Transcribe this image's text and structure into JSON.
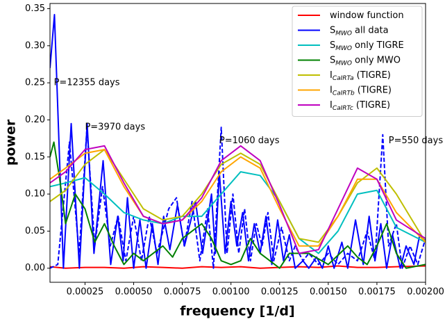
{
  "chart_data": {
    "type": "line",
    "xlabel": "frequency [1/d]",
    "ylabel": "power",
    "xlim": [
      7e-05,
      0.002
    ],
    "ylim": [
      -0.019,
      0.357
    ],
    "xticks": [
      {
        "value": 0.00025,
        "label": "0.00025"
      },
      {
        "value": 0.0005,
        "label": "0.00050"
      },
      {
        "value": 0.00075,
        "label": "0.00075"
      },
      {
        "value": 0.001,
        "label": "0.00100"
      },
      {
        "value": 0.00125,
        "label": "0.00125"
      },
      {
        "value": 0.0015,
        "label": "0.00150"
      },
      {
        "value": 0.00175,
        "label": "0.00175"
      },
      {
        "value": 0.002,
        "label": "0.00200"
      }
    ],
    "yticks": [
      {
        "value": 0,
        "label": "0.00"
      },
      {
        "value": 0.05,
        "label": "0.05"
      },
      {
        "value": 0.1,
        "label": "0.10"
      },
      {
        "value": 0.15,
        "label": "0.15"
      },
      {
        "value": 0.2,
        "label": "0.20"
      },
      {
        "value": 0.25,
        "label": "0.25"
      },
      {
        "value": 0.3,
        "label": "0.30"
      },
      {
        "value": 0.35,
        "label": "0.35"
      }
    ],
    "legend": "upper right",
    "series": [
      {
        "name": {
          "text": "window function"
        },
        "color": "#ff0000",
        "x": [
          7e-05,
          0.00015,
          0.00025,
          0.00035,
          0.00045,
          0.00055,
          0.00065,
          0.00075,
          0.00085,
          0.00095,
          0.00105,
          0.00115,
          0.00125,
          0.00135,
          0.00145,
          0.00155,
          0.00165,
          0.00175,
          0.00185,
          0.002
        ],
        "values": [
          0.002,
          0,
          0.001,
          0.001,
          0,
          0.002,
          0.001,
          0,
          0.002,
          0.001,
          0.002,
          0,
          0.001,
          0.002,
          0.001,
          0.003,
          0.001,
          0.001,
          0.002,
          0.003
        ]
      },
      {
        "name": {
          "base": "S",
          "sub": "MWO",
          "text": "all data"
        },
        "color": "#0000ff",
        "x": [
          7e-05,
          9.3e-05,
          0.000139,
          0.000179,
          0.000221,
          0.000261,
          0.000296,
          0.000343,
          0.000382,
          0.000418,
          0.000446,
          0.000468,
          0.0005,
          0.000532,
          0.000564,
          0.000596,
          0.000625,
          0.000654,
          0.000686,
          0.000725,
          0.000761,
          0.000818,
          0.000854,
          0.0009,
          0.00092,
          0.00094,
          0.00097,
          0.001,
          0.00103,
          0.00106,
          0.00109,
          0.00112,
          0.00115,
          0.00118,
          0.00121,
          0.00124,
          0.00127,
          0.0013,
          0.00133,
          0.00137,
          0.0014,
          0.00144,
          0.00147,
          0.0015,
          0.00153,
          0.00157,
          0.0016,
          0.00164,
          0.00168,
          0.00171,
          0.00174,
          0.00177,
          0.0018,
          0.00183,
          0.00187,
          0.0019,
          0.00194,
          0.00197,
          0.002
        ],
        "values": [
          0.27,
          0.342,
          0,
          0.195,
          0,
          0.195,
          0.02,
          0.145,
          0.005,
          0.07,
          0.01,
          0.095,
          0,
          0.065,
          0,
          0.06,
          0.005,
          0.07,
          0.025,
          0.085,
          0.03,
          0.09,
          0.02,
          0.1,
          0.02,
          0.13,
          0.02,
          0.09,
          0.03,
          0.075,
          0.01,
          0.06,
          0.02,
          0.07,
          0.005,
          0.065,
          0.01,
          0.045,
          0,
          0.01,
          0,
          0.015,
          0,
          0.03,
          0,
          0.035,
          0,
          0.065,
          0.005,
          0.07,
          0.01,
          0.06,
          0,
          0.045,
          0,
          0.03,
          0.005,
          0.045,
          0.035
        ]
      },
      {
        "color": "#0000ff",
        "dashed": true,
        "x": [
          7e-05,
          0.00011,
          0.00017,
          0.00022,
          0.00026,
          0.0003,
          0.00034,
          0.00038,
          0.00042,
          0.00046,
          0.0005,
          0.00054,
          0.00058,
          0.00062,
          0.00068,
          0.00072,
          0.00076,
          0.0008,
          0.00084,
          0.00088,
          0.00091,
          0.00095,
          0.00098,
          0.00101,
          0.00104,
          0.00107,
          0.0011,
          0.00113,
          0.00116,
          0.00119,
          0.00122,
          0.00126,
          0.0013,
          0.00133,
          0.00137,
          0.0014,
          0.00145,
          0.0015,
          0.00155,
          0.0016,
          0.00165,
          0.0017,
          0.00174,
          0.00178,
          0.00181,
          0.00185,
          0.00188,
          0.00192,
          0.00196,
          0.002
        ],
        "values": [
          0,
          0.005,
          0.17,
          0.02,
          0.19,
          0.03,
          0.11,
          0.03,
          0.07,
          0.01,
          0.07,
          0.01,
          0.07,
          0.02,
          0.08,
          0.095,
          0.03,
          0.09,
          0.01,
          0.08,
          0,
          0.19,
          0.02,
          0.1,
          0.02,
          0.08,
          0.01,
          0.06,
          0.03,
          0.075,
          0.01,
          0.055,
          0.01,
          0.03,
          0.01,
          0.02,
          0.005,
          0.02,
          0.005,
          0.02,
          0.01,
          0.05,
          0.01,
          0.18,
          0.03,
          0.06,
          0,
          0.03,
          0.005,
          0.04
        ]
      },
      {
        "name": {
          "base": "S",
          "sub": "MWO",
          "text": "only TIGRE"
        },
        "color": "#00bfbf",
        "x": [
          7e-05,
          0.00015,
          0.00025,
          0.00035,
          0.00045,
          0.00055,
          0.00065,
          0.00075,
          0.00085,
          0.00095,
          0.00105,
          0.00115,
          0.00125,
          0.00135,
          0.00145,
          0.00155,
          0.00165,
          0.00175,
          0.00185,
          0.002
        ],
        "values": [
          0.11,
          0.115,
          0.122,
          0.1,
          0.075,
          0.065,
          0.06,
          0.07,
          0.07,
          0.1,
          0.13,
          0.125,
          0.09,
          0.04,
          0.02,
          0.05,
          0.1,
          0.105,
          0.055,
          0.035
        ]
      },
      {
        "name": {
          "base": "S",
          "sub": "MWO",
          "text": "only MWO"
        },
        "color": "#008000",
        "x": [
          7e-05,
          9e-05,
          0.00012,
          0.00015,
          0.0002,
          0.00025,
          0.0003,
          0.00035,
          0.0004,
          0.00045,
          0.0005,
          0.00055,
          0.0006,
          0.00065,
          0.0007,
          0.00075,
          0.0008,
          0.00085,
          0.0009,
          0.00095,
          0.001,
          0.00105,
          0.0011,
          0.00115,
          0.0012,
          0.00125,
          0.0013,
          0.0014,
          0.0015,
          0.0016,
          0.00165,
          0.0017,
          0.00175,
          0.0018,
          0.00185,
          0.0019,
          0.002
        ],
        "values": [
          0.15,
          0.17,
          0.12,
          0.06,
          0.1,
          0.08,
          0.035,
          0.06,
          0.03,
          0.005,
          0.02,
          0.01,
          0.02,
          0.03,
          0.015,
          0.04,
          0.05,
          0.06,
          0.04,
          0.01,
          0.005,
          0.01,
          0.04,
          0.02,
          0.01,
          0,
          0.02,
          0.02,
          0.005,
          0.03,
          0.015,
          0.005,
          0.03,
          0.06,
          0.02,
          0,
          0.005
        ]
      },
      {
        "name": {
          "base": "I",
          "sub": "CaIRTa",
          "text": "(TIGRE)"
        },
        "color": "#bfbf00",
        "x": [
          7e-05,
          0.00015,
          0.00025,
          0.00035,
          0.00045,
          0.00055,
          0.00065,
          0.00075,
          0.00085,
          0.00095,
          0.00105,
          0.00115,
          0.00125,
          0.00135,
          0.00145,
          0.00155,
          0.00165,
          0.00175,
          0.00185,
          0.002
        ],
        "values": [
          0.09,
          0.105,
          0.14,
          0.16,
          0.12,
          0.08,
          0.065,
          0.07,
          0.1,
          0.14,
          0.155,
          0.14,
          0.09,
          0.04,
          0.035,
          0.07,
          0.115,
          0.135,
          0.1,
          0.035
        ]
      },
      {
        "name": {
          "base": "I",
          "sub": "CaIRTb",
          "text": "(TIGRE)"
        },
        "color": "#ffa500",
        "x": [
          7e-05,
          0.00015,
          0.00025,
          0.00035,
          0.00045,
          0.00055,
          0.00065,
          0.00075,
          0.00085,
          0.00095,
          0.00105,
          0.00115,
          0.00125,
          0.00135,
          0.00145,
          0.00155,
          0.00165,
          0.00175,
          0.00185,
          0.002
        ],
        "values": [
          0.12,
          0.135,
          0.155,
          0.16,
          0.11,
          0.07,
          0.06,
          0.065,
          0.09,
          0.13,
          0.15,
          0.135,
          0.08,
          0.03,
          0.03,
          0.07,
          0.12,
          0.12,
          0.075,
          0.035
        ]
      },
      {
        "name": {
          "base": "I",
          "sub": "CaIRTc",
          "text": "(TIGRE)"
        },
        "color": "#bf00bf",
        "x": [
          7e-05,
          0.00015,
          0.00025,
          0.00035,
          0.00045,
          0.00055,
          0.00065,
          0.00075,
          0.00085,
          0.00095,
          0.00105,
          0.00115,
          0.00125,
          0.00135,
          0.00145,
          0.00155,
          0.00165,
          0.00175,
          0.00185,
          0.002
        ],
        "values": [
          0.115,
          0.13,
          0.16,
          0.165,
          0.115,
          0.07,
          0.06,
          0.065,
          0.095,
          0.145,
          0.165,
          0.145,
          0.085,
          0.02,
          0.025,
          0.08,
          0.135,
          0.12,
          0.065,
          0.04
        ]
      }
    ],
    "annotations": [
      {
        "text": "P=12355 days",
        "x": 9e-05,
        "y": 0.25
      },
      {
        "text": "P=3970 days",
        "x": 0.00025,
        "y": 0.19
      },
      {
        "text": "P=1060 days",
        "x": 0.00094,
        "y": 0.172
      },
      {
        "text": "P=550 days",
        "x": 0.00181,
        "y": 0.172
      }
    ]
  }
}
